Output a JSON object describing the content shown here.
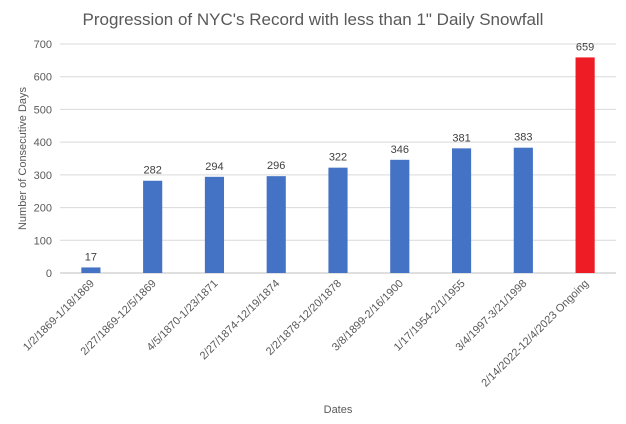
{
  "chart_data": {
    "type": "bar",
    "title": "Progression of NYC's Record with less than 1\" Daily Snowfall",
    "xlabel": "Dates",
    "ylabel": "Number  of Consecutive Days",
    "ylim": [
      0,
      700
    ],
    "yticks": [
      0,
      100,
      200,
      300,
      400,
      500,
      600,
      700
    ],
    "grid": true,
    "legend": "none",
    "categories": [
      "1/2/1869-1/18/1869",
      "2/27/1869-12/5/1869",
      "4/5/1870-1/23/1871",
      "2/27/1874-12/19/1874",
      "2/2/1878-12/20/1878",
      "3/8/1899-2/16/1900",
      "1/17/1954-2/1/1955",
      "3/4/1997-3/21/1998",
      "2/14/2022-12/4/2023 Ongoing"
    ],
    "values": [
      17,
      282,
      294,
      296,
      322,
      346,
      381,
      383,
      659
    ],
    "colors": [
      "#4472c4",
      "#4472c4",
      "#4472c4",
      "#4472c4",
      "#4472c4",
      "#4472c4",
      "#4472c4",
      "#4472c4",
      "#ee1c25"
    ]
  }
}
